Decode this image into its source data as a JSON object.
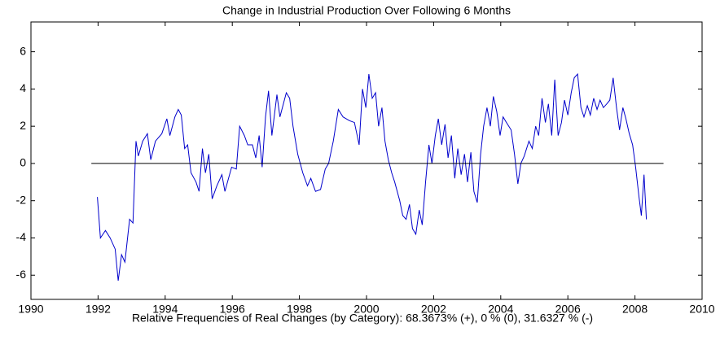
{
  "chart_data": {
    "type": "line",
    "title": "Change in Industrial Production Over Following 6 Months",
    "x_label": "Relative Frequencies of Real Changes (by Category): 68.3673% (+), 0 % (0), 31.6327 % (-)",
    "xlim": [
      1990,
      2010
    ],
    "xticks": [
      1990,
      1992,
      1994,
      1996,
      1998,
      2000,
      2002,
      2004,
      2006,
      2008,
      2010
    ],
    "ylim": [
      -7.3,
      7.6
    ],
    "yticks": [
      -6,
      -4,
      -2,
      0,
      2,
      4,
      6
    ],
    "series": [
      {
        "color": "#0000cc",
        "x": [
          1991.98,
          1992.07,
          1992.22,
          1992.36,
          1992.51,
          1992.6,
          1992.7,
          1992.8,
          1992.94,
          1993.04,
          1993.13,
          1993.2,
          1993.33,
          1993.47,
          1993.57,
          1993.71,
          1993.9,
          1994.05,
          1994.14,
          1994.29,
          1994.39,
          1994.48,
          1994.58,
          1994.67,
          1994.77,
          1994.92,
          1995.01,
          1995.11,
          1995.2,
          1995.3,
          1995.4,
          1995.54,
          1995.69,
          1995.78,
          1995.98,
          1996.12,
          1996.22,
          1996.36,
          1996.46,
          1996.6,
          1996.7,
          1996.8,
          1996.89,
          1996.99,
          1997.08,
          1997.18,
          1997.33,
          1997.42,
          1997.61,
          1997.71,
          1997.81,
          1997.95,
          1998.1,
          1998.24,
          1998.34,
          1998.48,
          1998.63,
          1998.77,
          1998.87,
          1999.01,
          1999.16,
          1999.3,
          1999.49,
          1999.64,
          1999.78,
          1999.88,
          1999.98,
          2000.07,
          2000.17,
          2000.27,
          2000.36,
          2000.46,
          2000.55,
          2000.65,
          2000.75,
          2000.84,
          2000.99,
          2001.08,
          2001.18,
          2001.28,
          2001.37,
          2001.47,
          2001.57,
          2001.66,
          2001.76,
          2001.86,
          2001.95,
          2002.05,
          2002.14,
          2002.24,
          2002.34,
          2002.43,
          2002.53,
          2002.63,
          2002.72,
          2002.82,
          2002.92,
          2003.01,
          2003.11,
          2003.2,
          2003.3,
          2003.4,
          2003.49,
          2003.59,
          2003.69,
          2003.78,
          2003.88,
          2003.98,
          2004.07,
          2004.17,
          2004.31,
          2004.41,
          2004.51,
          2004.6,
          2004.7,
          2004.84,
          2004.94,
          2005.04,
          2005.13,
          2005.23,
          2005.33,
          2005.42,
          2005.52,
          2005.61,
          2005.71,
          2005.81,
          2005.9,
          2006.0,
          2006.1,
          2006.19,
          2006.29,
          2006.39,
          2006.48,
          2006.58,
          2006.67,
          2006.77,
          2006.87,
          2006.96,
          2007.06,
          2007.16,
          2007.25,
          2007.35,
          2007.45,
          2007.54,
          2007.64,
          2007.73,
          2007.83,
          2007.93,
          2008.02,
          2008.12,
          2008.19,
          2008.27,
          2008.34
        ],
        "values": [
          -1.8,
          -4.0,
          -3.6,
          -4.0,
          -4.6,
          -6.3,
          -4.9,
          -5.3,
          -3.0,
          -3.2,
          1.2,
          0.4,
          1.2,
          1.6,
          0.2,
          1.2,
          1.6,
          2.4,
          1.5,
          2.5,
          2.9,
          2.6,
          0.8,
          1.0,
          -0.5,
          -1.0,
          -1.5,
          0.8,
          -0.5,
          0.5,
          -1.9,
          -1.2,
          -0.6,
          -1.5,
          -0.2,
          -0.3,
          2.0,
          1.5,
          1.0,
          1.0,
          0.3,
          1.5,
          -0.2,
          2.5,
          3.9,
          1.5,
          3.7,
          2.5,
          3.8,
          3.5,
          2.0,
          0.5,
          -0.5,
          -1.2,
          -0.8,
          -1.5,
          -1.4,
          -0.3,
          0.0,
          1.2,
          2.9,
          2.5,
          2.3,
          2.2,
          1.0,
          4.0,
          3.0,
          4.8,
          3.5,
          3.8,
          2.0,
          3.0,
          1.2,
          0.2,
          -0.5,
          -1.0,
          -2.0,
          -2.8,
          -3.0,
          -2.2,
          -3.5,
          -3.8,
          -2.5,
          -3.3,
          -1.0,
          1.0,
          0.0,
          1.5,
          2.4,
          1.0,
          2.1,
          0.3,
          1.5,
          -0.8,
          0.8,
          -0.6,
          0.5,
          -1.0,
          0.6,
          -1.5,
          -2.1,
          0.5,
          2.0,
          3.0,
          2.0,
          3.6,
          2.8,
          1.5,
          2.5,
          2.2,
          1.8,
          0.5,
          -1.1,
          0.0,
          0.4,
          1.2,
          0.8,
          2.0,
          1.5,
          3.5,
          2.2,
          3.2,
          1.5,
          4.5,
          1.5,
          2.2,
          3.4,
          2.6,
          3.8,
          4.6,
          4.8,
          3.0,
          2.5,
          3.1,
          2.6,
          3.5,
          2.9,
          3.4,
          3.0,
          3.2,
          3.4,
          4.6,
          3.0,
          1.8,
          3.0,
          2.4,
          1.6,
          1.0,
          -0.2,
          -1.8,
          -2.8,
          -0.6,
          -3.0
        ]
      },
      {
        "color": "#000000",
        "x": [
          1991.8,
          2008.85
        ],
        "values": [
          0,
          0
        ]
      }
    ]
  }
}
